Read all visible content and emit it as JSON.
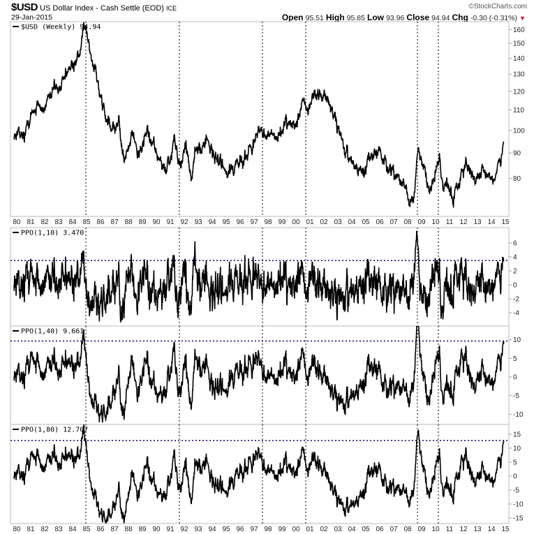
{
  "header": {
    "symbol": "$USD",
    "name": "US Dollar Index - Cash Settle (EOD)",
    "exchange": "ICE",
    "date": "29-Jan-2015",
    "watermark": "©StockCharts.com",
    "open_label": "Open",
    "open": "95.51",
    "high_label": "High",
    "high": "95.85",
    "low_label": "Low",
    "low": "93.96",
    "close_label": "Close",
    "close": "94.94",
    "chg_label": "Chg",
    "chg": "-0.30 (-0.31%)",
    "chg_direction": "down",
    "chg_color": "#cc0033"
  },
  "chart_data": {
    "type": "line",
    "x_tick_labels": [
      "80",
      "81",
      "82",
      "83",
      "84",
      "85",
      "86",
      "87",
      "88",
      "89",
      "90",
      "91",
      "92",
      "93",
      "94",
      "95",
      "96",
      "97",
      "98",
      "99",
      "00",
      "01",
      "02",
      "03",
      "04",
      "05",
      "06",
      "07",
      "08",
      "09",
      "10",
      "11",
      "12",
      "13",
      "14",
      "15"
    ],
    "x_range": [
      1980,
      2015.08
    ],
    "vertical_annotations": [
      1985.15,
      1991.85,
      1997.8,
      2000.9,
      2008.9,
      2010.4
    ],
    "annotation_color": "#000080",
    "panels": [
      {
        "legend": "$USD (Weekly) 94.94",
        "scale": "log",
        "ylim": [
          67,
          166
        ],
        "y_ticks": [
          80,
          90,
          100,
          110,
          120,
          130,
          140,
          150,
          160
        ],
        "series": {
          "name": "$USD (Weekly)",
          "last": 94.94,
          "points": [
            [
              1980.0,
              98
            ],
            [
              1980.4,
              99
            ],
            [
              1980.8,
              101
            ],
            [
              1981.0,
              100
            ],
            [
              1981.5,
              112
            ],
            [
              1982.0,
              110
            ],
            [
              1982.8,
              122
            ],
            [
              1983.5,
              125
            ],
            [
              1984.0,
              133
            ],
            [
              1984.6,
              140
            ],
            [
              1985.15,
              160
            ],
            [
              1985.5,
              140
            ],
            [
              1986.0,
              125
            ],
            [
              1986.5,
              110
            ],
            [
              1987.0,
              100
            ],
            [
              1987.5,
              103
            ],
            [
              1987.9,
              86
            ],
            [
              1988.5,
              98
            ],
            [
              1988.9,
              88
            ],
            [
              1989.5,
              101
            ],
            [
              1990.0,
              94
            ],
            [
              1990.6,
              85
            ],
            [
              1990.9,
              82
            ],
            [
              1991.5,
              97
            ],
            [
              1991.9,
              85
            ],
            [
              1992.3,
              92
            ],
            [
              1992.7,
              79
            ],
            [
              1993.0,
              92
            ],
            [
              1993.6,
              95
            ],
            [
              1994.0,
              92
            ],
            [
              1994.7,
              86
            ],
            [
              1995.3,
              82
            ],
            [
              1995.8,
              86
            ],
            [
              1996.5,
              88
            ],
            [
              1997.0,
              93
            ],
            [
              1997.6,
              100
            ],
            [
              1998.0,
              100
            ],
            [
              1998.7,
              95
            ],
            [
              1999.0,
              98
            ],
            [
              1999.5,
              103
            ],
            [
              2000.0,
              102
            ],
            [
              2000.8,
              115
            ],
            [
              2001.0,
              110
            ],
            [
              2001.5,
              118
            ],
            [
              2002.0,
              119
            ],
            [
              2002.4,
              115
            ],
            [
              2002.9,
              106
            ],
            [
              2003.5,
              95
            ],
            [
              2004.0,
              88
            ],
            [
              2004.9,
              81
            ],
            [
              2005.6,
              90
            ],
            [
              2006.0,
              90
            ],
            [
              2006.8,
              85
            ],
            [
              2007.5,
              80
            ],
            [
              2008.0,
              76
            ],
            [
              2008.3,
              72
            ],
            [
              2008.6,
              73
            ],
            [
              2008.9,
              88
            ],
            [
              2009.2,
              86
            ],
            [
              2009.9,
              75
            ],
            [
              2010.45,
              88
            ],
            [
              2010.8,
              77
            ],
            [
              2011.0,
              79
            ],
            [
              2011.4,
              73
            ],
            [
              2011.8,
              79
            ],
            [
              2012.5,
              83
            ],
            [
              2013.0,
              80
            ],
            [
              2013.5,
              84
            ],
            [
              2014.0,
              80
            ],
            [
              2014.5,
              80
            ],
            [
              2014.9,
              88
            ],
            [
              2015.08,
              94.94
            ]
          ]
        }
      },
      {
        "legend": "PPO(1,10) 3.470",
        "indicator": "PPO",
        "fast": 1,
        "slow": 10,
        "last": 3.47,
        "ylim": [
          -5.9,
          8.2
        ],
        "y_ticks": [
          -4,
          -2,
          0,
          2,
          4,
          6
        ]
      },
      {
        "legend": "PPO(1,40) 9.661",
        "indicator": "PPO",
        "fast": 1,
        "slow": 40,
        "last": 9.661,
        "ylim": [
          -12.75,
          13.7
        ],
        "y_ticks": [
          -10,
          -5,
          0,
          5,
          10
        ]
      },
      {
        "legend": "PPO(1,80) 12.707",
        "indicator": "PPO",
        "fast": 1,
        "slow": 80,
        "last": 12.707,
        "ylim": [
          -17,
          18.5
        ],
        "y_ticks": [
          -15,
          -10,
          -5,
          0,
          5,
          10,
          15
        ]
      }
    ]
  }
}
